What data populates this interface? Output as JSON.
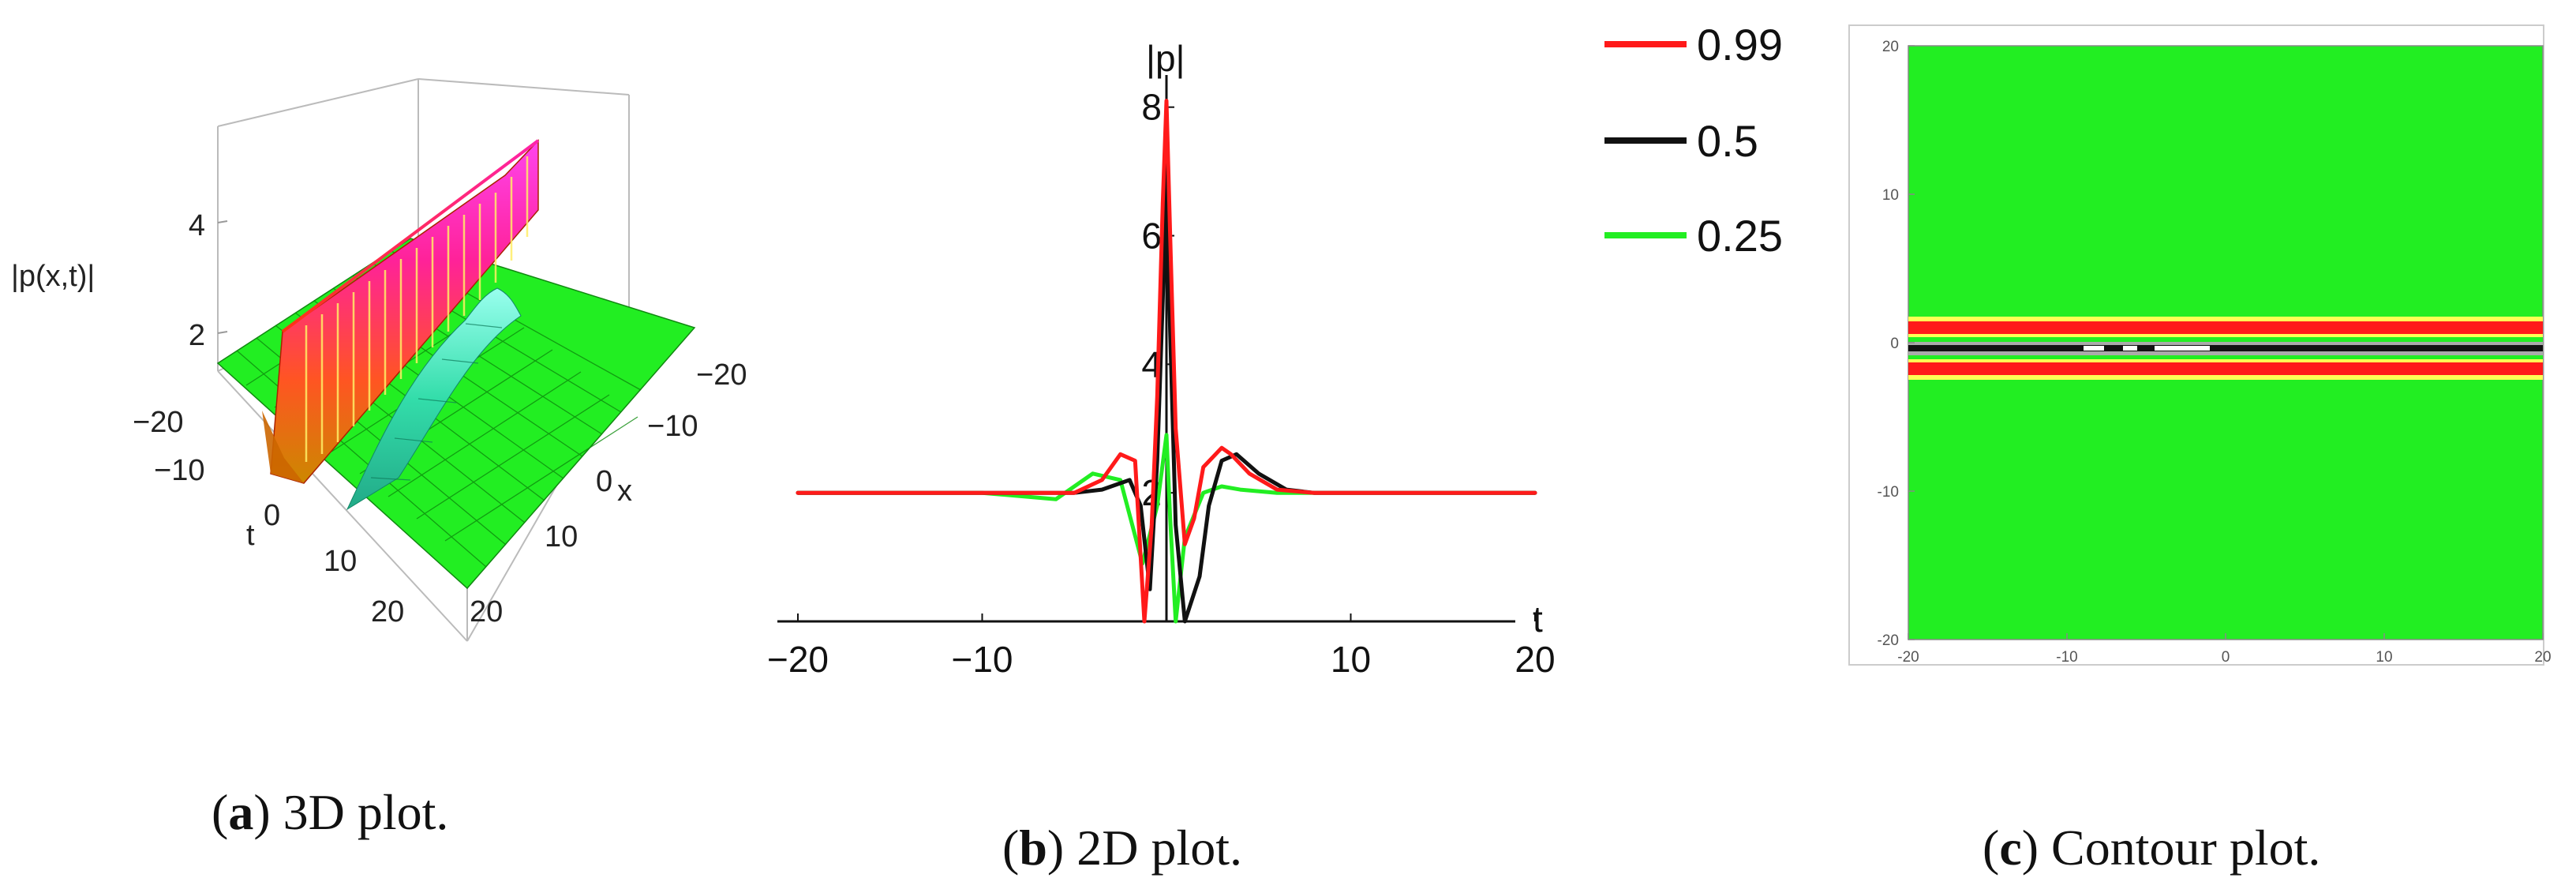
{
  "panels": {
    "a": {
      "caption": {
        "letter": "a",
        "text": " 3D plot."
      },
      "z_axis_label": "|p(x,t)|",
      "z_ticks": [
        "2",
        "4"
      ],
      "t_axis_label": "t",
      "t_ticks": [
        "−20",
        "−10",
        "0",
        "10",
        "20"
      ],
      "x_axis_label": "x",
      "x_ticks": [
        "−20",
        "−10",
        "0",
        "10",
        "20"
      ]
    },
    "b": {
      "caption": {
        "letter": "b",
        "text": " 2D plot."
      },
      "legend": [
        "0.99",
        "0.5",
        "0.25"
      ]
    },
    "c": {
      "caption": {
        "letter": "c",
        "text": " Contour plot."
      }
    }
  },
  "chart_data": [
    {
      "type": "surface",
      "panel": "a",
      "xlabel": "x",
      "ylabel": "t",
      "zlabel": "|p(x,t)|",
      "xlim": [
        -20,
        20
      ],
      "ylim": [
        -20,
        20
      ],
      "z_ticks": [
        2,
        4
      ],
      "colors": {
        "background": "#22ee22",
        "peak": "#ff33cc",
        "ridge_base": "#ff3311"
      }
    },
    {
      "type": "line",
      "panel": "b",
      "xlabel": "t",
      "ylabel": "|p|",
      "xlim": [
        -20,
        20
      ],
      "ylim": [
        0,
        8.5
      ],
      "x_ticks": [
        -20,
        -10,
        10,
        20
      ],
      "y_ticks": [
        2,
        4,
        6,
        8
      ],
      "series": [
        {
          "name": "0.99",
          "color": "#ff1a1a",
          "x": [
            -20,
            -10,
            -5,
            -3.5,
            -2.5,
            -1.7,
            -1.2,
            -0.8,
            -0.5,
            -0.2,
            0,
            0.2,
            0.5,
            1,
            1.5,
            2,
            3,
            3.5,
            4.5,
            6,
            8,
            12,
            20
          ],
          "y": [
            2.0,
            2.0,
            2.0,
            2.2,
            2.6,
            2.5,
            0.0,
            1.5,
            3.5,
            6.5,
            8.1,
            6.0,
            3.0,
            1.2,
            1.6,
            2.4,
            2.7,
            2.6,
            2.3,
            2.05,
            2.0,
            2.0,
            2.0
          ]
        },
        {
          "name": "0.5",
          "color": "#111111",
          "x": [
            -20,
            -10,
            -5,
            -3.5,
            -2,
            -1.4,
            -0.9,
            -0.5,
            -0.2,
            0,
            0.2,
            0.5,
            1,
            1.8,
            2.3,
            3,
            3.8,
            5,
            6.5,
            8,
            12,
            20
          ],
          "y": [
            2.0,
            2.0,
            2.0,
            2.05,
            2.2,
            1.8,
            0.5,
            2.5,
            5.0,
            6.9,
            4.5,
            1.5,
            0.0,
            0.7,
            1.8,
            2.5,
            2.6,
            2.3,
            2.05,
            2.0,
            2.0,
            2.0
          ]
        },
        {
          "name": "0.25",
          "color": "#22ee22",
          "x": [
            -20,
            -10,
            -6,
            -4,
            -2.5,
            -1.3,
            -0.5,
            0,
            0.2,
            0.5,
            1,
            2,
            3,
            4,
            6,
            10,
            20
          ],
          "y": [
            2.0,
            2.0,
            1.9,
            2.3,
            2.2,
            0.9,
            1.8,
            2.9,
            1.6,
            0.0,
            1.3,
            2.0,
            2.1,
            2.05,
            2.0,
            2.0,
            2.0
          ]
        }
      ]
    },
    {
      "type": "heatmap",
      "panel": "c",
      "xlim": [
        -20,
        20
      ],
      "ylim": [
        -20,
        20
      ],
      "x_ticks": [
        "-20",
        "-10",
        "0",
        "10",
        "20"
      ],
      "y_ticks": [
        "-20",
        "-10",
        "0",
        "10",
        "20"
      ],
      "colors": {
        "background": "#22ee22",
        "band": "#ff1a1a",
        "stripe": "#ffff55",
        "core": "#111111"
      },
      "bands_t": [
        -1.5,
        1.5
      ]
    }
  ]
}
